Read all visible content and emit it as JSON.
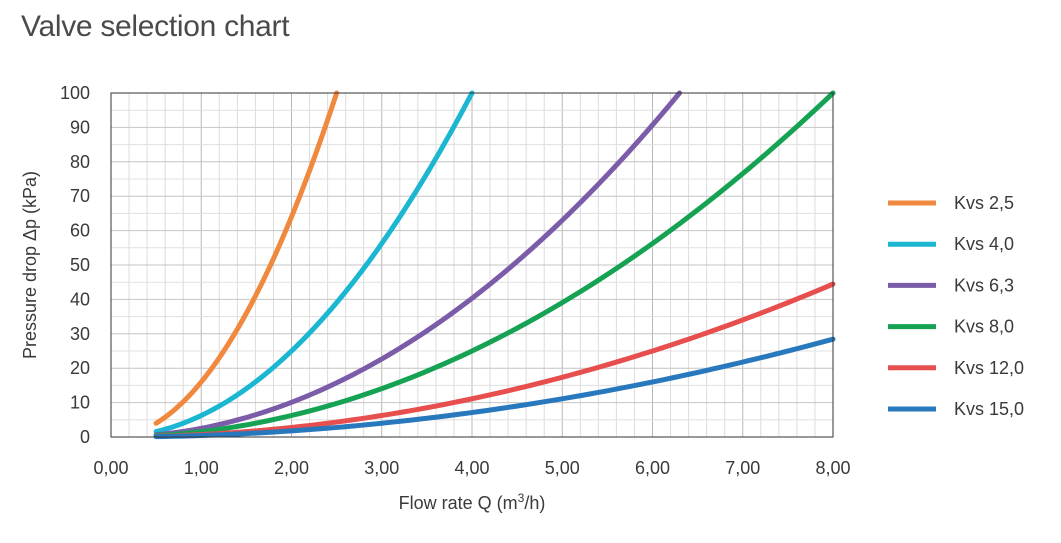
{
  "page": {
    "title": "Valve selection chart"
  },
  "chart_data": {
    "type": "line",
    "title": "Valve selection chart",
    "xlabel_main": "Flow rate Q (m",
    "xlabel_sup": "3",
    "xlabel_end": "/h)",
    "ylabel": "Pressure drop Δp (kPa)",
    "xlim": [
      0,
      8
    ],
    "ylim": [
      0,
      100
    ],
    "x_ticks": [
      "0,00",
      "1,00",
      "2,00",
      "3,00",
      "4,00",
      "5,00",
      "6,00",
      "7,00",
      "8,00"
    ],
    "y_ticks": [
      "0",
      "10",
      "20",
      "30",
      "40",
      "50",
      "60",
      "70",
      "80",
      "90",
      "100"
    ],
    "x_major_step": 1,
    "x_minor_step": 0.2,
    "y_step": 5,
    "grid": true,
    "legend_position": "right",
    "series": [
      {
        "name": "Kvs 2,5",
        "kvs": 2.5,
        "color": "#f0883e",
        "x_start": 0.5,
        "points": [
          [
            0.5,
            4
          ],
          [
            1.0,
            16
          ],
          [
            1.5,
            36
          ],
          [
            2.0,
            64
          ],
          [
            2.5,
            100
          ]
        ]
      },
      {
        "name": "Kvs 4,0",
        "kvs": 4.0,
        "color": "#1bb6d1",
        "x_start": 0.5,
        "points": [
          [
            0.5,
            1.6
          ],
          [
            1.0,
            6.3
          ],
          [
            2.0,
            25
          ],
          [
            3.0,
            56
          ],
          [
            4.0,
            100
          ]
        ]
      },
      {
        "name": "Kvs 6,3",
        "kvs": 6.3,
        "color": "#7b5ca8",
        "x_start": 0.5,
        "points": [
          [
            0.5,
            0.6
          ],
          [
            1.0,
            2.5
          ],
          [
            2.0,
            10
          ],
          [
            3.0,
            23
          ],
          [
            4.0,
            40
          ],
          [
            5.0,
            63
          ],
          [
            6.3,
            100
          ]
        ]
      },
      {
        "name": "Kvs 8,0",
        "kvs": 8.0,
        "color": "#16a253",
        "x_start": 0.5,
        "points": [
          [
            0.5,
            0.4
          ],
          [
            1.0,
            1.6
          ],
          [
            2.0,
            6.3
          ],
          [
            4.0,
            25
          ],
          [
            6.0,
            56
          ],
          [
            8.0,
            100
          ]
        ]
      },
      {
        "name": "Kvs 12,0",
        "kvs": 12.0,
        "color": "#e74f4f",
        "x_start": 0.5,
        "points": [
          [
            0.5,
            0.2
          ],
          [
            2.0,
            2.8
          ],
          [
            4.0,
            11
          ],
          [
            6.0,
            25
          ],
          [
            8.0,
            44.4
          ]
        ]
      },
      {
        "name": "Kvs 15,0",
        "kvs": 15.0,
        "color": "#2878bd",
        "x_start": 0.5,
        "points": [
          [
            0.5,
            0.1
          ],
          [
            2.0,
            1.8
          ],
          [
            4.0,
            7.1
          ],
          [
            6.0,
            16
          ],
          [
            8.0,
            28.4
          ]
        ]
      }
    ]
  }
}
